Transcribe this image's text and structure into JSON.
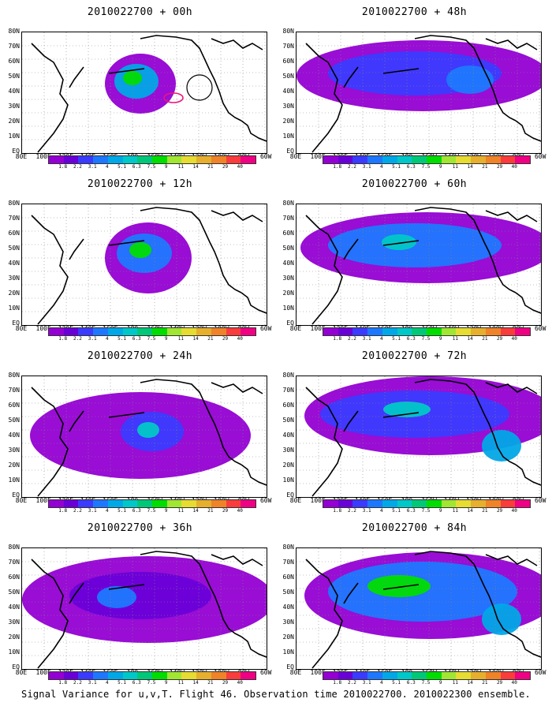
{
  "panels": [
    {
      "title": "2010022700 + 00h"
    },
    {
      "title": "2010022700 + 48h"
    },
    {
      "title": "2010022700 + 12h"
    },
    {
      "title": "2010022700 + 60h"
    },
    {
      "title": "2010022700 + 24h"
    },
    {
      "title": "2010022700 + 72h"
    },
    {
      "title": "2010022700 + 36h"
    },
    {
      "title": "2010022700 + 84h"
    }
  ],
  "lat_labels": [
    "80N",
    "70N",
    "60N",
    "50N",
    "40N",
    "30N",
    "20N",
    "10N",
    "EQ"
  ],
  "lon_labels": [
    "80E",
    "100E",
    "120E",
    "140E",
    "160E",
    "180",
    "160W",
    "140W",
    "120W",
    "100W",
    "80W",
    "60W"
  ],
  "colorbar": {
    "labels": [
      "1.8",
      "2.2",
      "3.1",
      "4",
      "5.1",
      "6.3",
      "7.5",
      "9",
      "11",
      "14",
      "21",
      "29",
      "40"
    ],
    "colors": [
      "#9400d3",
      "#6a00d8",
      "#3b3bff",
      "#1e78ff",
      "#00a8e8",
      "#00c8c8",
      "#00c878",
      "#00dd00",
      "#a0e632",
      "#e6dc32",
      "#e6af2d",
      "#f08228",
      "#fa3c3c",
      "#f00082"
    ]
  },
  "caption": "Signal Variance for u,v,T. Flight 46. Observation time 2010022700. 2010022300 ensemble."
}
